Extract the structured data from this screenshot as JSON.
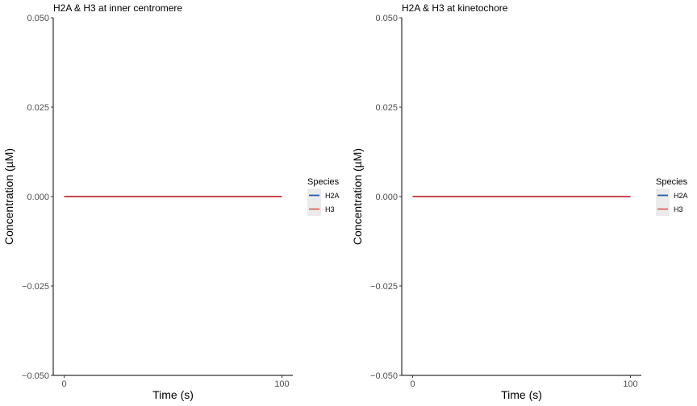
{
  "chart_data": [
    {
      "type": "line",
      "title": "H2A & H3 at inner centromere",
      "xlabel": "Time (s)",
      "ylabel": "Concentration (µM)",
      "x_ticks": [
        0,
        100
      ],
      "x_tick_labels": [
        "0",
        "100"
      ],
      "y_ticks": [
        -0.05,
        -0.025,
        0,
        0.025,
        0.05
      ],
      "y_tick_labels": [
        "−0.050",
        "−0.025",
        "0.000",
        "0.025",
        "0.050"
      ],
      "xlim": [
        -5,
        105
      ],
      "ylim": [
        -0.05,
        0.05
      ],
      "grid": false,
      "legend": {
        "title": "Species",
        "position": "right",
        "entries": [
          "H2A",
          "H3"
        ]
      },
      "series": [
        {
          "name": "H2A",
          "color": "#1f5fb4",
          "x": [
            0,
            100
          ],
          "y": [
            0,
            0
          ]
        },
        {
          "name": "H3",
          "color": "#d7261e",
          "x": [
            0,
            100
          ],
          "y": [
            0,
            0
          ]
        }
      ]
    },
    {
      "type": "line",
      "title": "H2A & H3 at kinetochore",
      "xlabel": "Time (s)",
      "ylabel": "Concentration (µM)",
      "x_ticks": [
        0,
        100
      ],
      "x_tick_labels": [
        "0",
        "100"
      ],
      "y_ticks": [
        -0.05,
        -0.025,
        0,
        0.025,
        0.05
      ],
      "y_tick_labels": [
        "−0.050",
        "−0.025",
        "0.000",
        "0.025",
        "0.050"
      ],
      "xlim": [
        -5,
        105
      ],
      "ylim": [
        -0.05,
        0.05
      ],
      "grid": false,
      "legend": {
        "title": "Species",
        "position": "right",
        "entries": [
          "H2A",
          "H3"
        ]
      },
      "series": [
        {
          "name": "H2A",
          "color": "#1f5fb4",
          "x": [
            0,
            100
          ],
          "y": [
            0,
            0
          ]
        },
        {
          "name": "H3",
          "color": "#d7261e",
          "x": [
            0,
            100
          ],
          "y": [
            0,
            0
          ]
        }
      ]
    }
  ]
}
